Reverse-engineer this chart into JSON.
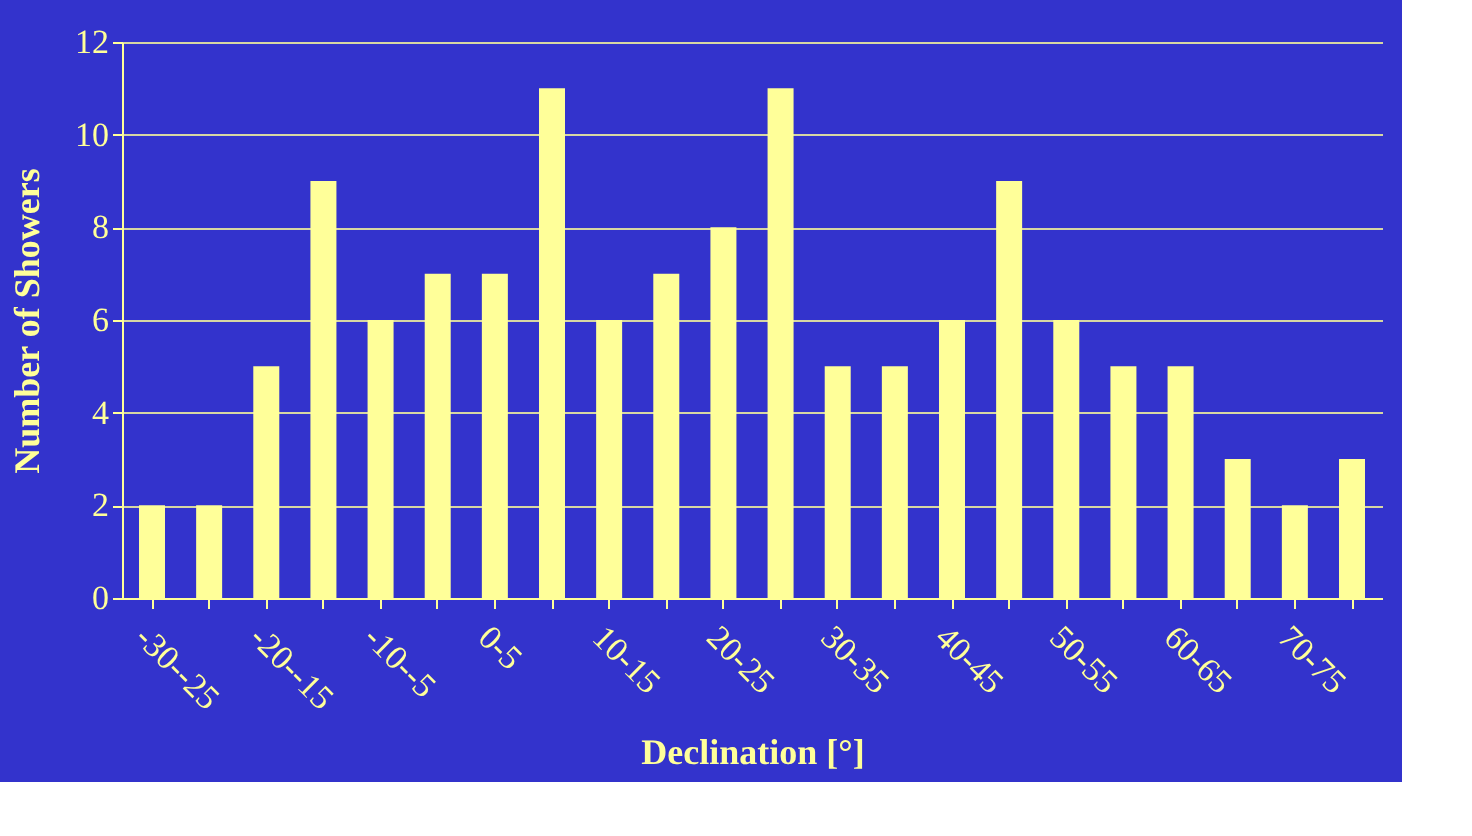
{
  "chart_data": {
    "type": "bar",
    "xlabel": "Declination [°]",
    "ylabel": "Number of Showers",
    "categories": [
      "-30--25",
      null,
      "-20--15",
      null,
      "-10--5",
      null,
      "0-5",
      null,
      "10-15",
      null,
      "20-25",
      null,
      "30-35",
      null,
      "40-45",
      null,
      "50-55",
      null,
      "60-65",
      null,
      "70-75",
      null
    ],
    "values": [
      2,
      2,
      5,
      9,
      6,
      7,
      7,
      11,
      6,
      7,
      8,
      11,
      5,
      5,
      6,
      9,
      6,
      5,
      5,
      3,
      2,
      3
    ],
    "color": "#ffff99",
    "ylim": [
      0,
      12
    ],
    "yticks": [
      0,
      2,
      4,
      6,
      8,
      10,
      12
    ],
    "grid": "y"
  }
}
